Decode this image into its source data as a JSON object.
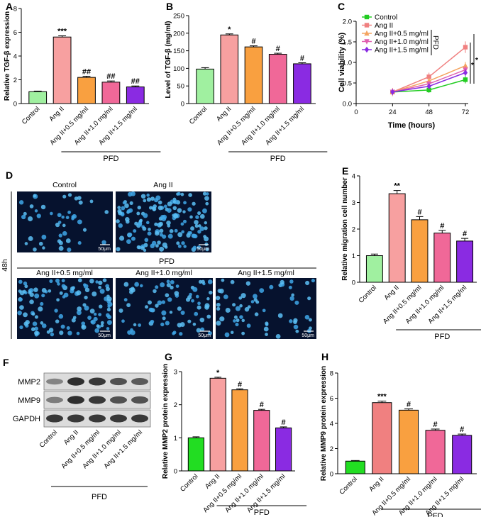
{
  "chart_data": [
    {
      "id": "A",
      "panel_label": "A",
      "type": "bar",
      "categories": [
        "Control",
        "Ang II",
        "Ang II+0.5 mg/ml",
        "Ang II+1.0 mg/ml",
        "Ang II+1.5 mg/ml"
      ],
      "values": [
        1.0,
        5.6,
        2.2,
        1.8,
        1.4
      ],
      "errors": [
        0.05,
        0.1,
        0.1,
        0.1,
        0.08
      ],
      "significance": [
        "",
        "***",
        "##",
        "##",
        "##"
      ],
      "colors": [
        "#a0f0a0",
        "#f7a0a0",
        "#f9a040",
        "#f06898",
        "#8a2be2"
      ],
      "ylabel": "Relative TGF-β expression",
      "ylim": [
        0,
        8
      ],
      "yticks": [
        0,
        2,
        4,
        6,
        8
      ],
      "group_label": "PFD"
    },
    {
      "id": "B",
      "panel_label": "B",
      "type": "bar",
      "categories": [
        "Control",
        "Ang II",
        "Ang II+0.5 mg/ml",
        "Ang II+1.0 mg/ml",
        "Ang II+1.5 mg/ml"
      ],
      "values": [
        98,
        195,
        161,
        140,
        113
      ],
      "errors": [
        4,
        3,
        3,
        3,
        3
      ],
      "significance": [
        "",
        "*",
        "#",
        "#",
        "#"
      ],
      "colors": [
        "#a0f0a0",
        "#f7a0a0",
        "#f9a040",
        "#f06898",
        "#8a2be2"
      ],
      "ylabel": "Level of TGF-β (mg/ml)",
      "ylim": [
        0,
        250
      ],
      "yticks": [
        0,
        50,
        100,
        150,
        200,
        250
      ],
      "group_label": "PFD"
    },
    {
      "id": "C",
      "panel_label": "C",
      "type": "line",
      "x": [
        24,
        48,
        72
      ],
      "xlim": [
        0,
        72
      ],
      "xticks": [
        0,
        24,
        48,
        72
      ],
      "ylim": [
        0.0,
        2.0
      ],
      "yticks": [
        "0.0",
        "0.5",
        "1.0",
        "1.5",
        "2.0"
      ],
      "xlabel": "Time (hours)",
      "ylabel": "Cell viability (%)",
      "series": [
        {
          "name": "Control",
          "values": [
            0.28,
            0.33,
            0.58
          ],
          "color": "#22cc22",
          "marker": "square"
        },
        {
          "name": "Ang II",
          "values": [
            0.28,
            0.65,
            1.37
          ],
          "color": "#f08080",
          "marker": "square"
        },
        {
          "name": "Ang II+0.5 mg/ml",
          "values": [
            0.28,
            0.55,
            0.92
          ],
          "color": "#f4a460",
          "marker": "triangle"
        },
        {
          "name": "Ang II+1.0 mg/ml",
          "values": [
            0.28,
            0.48,
            0.82
          ],
          "color": "#e060b0",
          "marker": "triangle-down"
        },
        {
          "name": "Ang II+1.5 mg/ml",
          "values": [
            0.28,
            0.42,
            0.75
          ],
          "color": "#8a2be2",
          "marker": "diamond"
        }
      ],
      "legend_group_label": "PFD",
      "significance": [
        "*",
        "*"
      ],
      "legend_position": "top-left"
    },
    {
      "id": "E",
      "panel_label": "E",
      "type": "bar",
      "categories": [
        "Control",
        "Ang II",
        "Ang II+0.5 mg/ml",
        "Ang II+1.0 mg/ml",
        "Ang II+1.5 mg/ml"
      ],
      "values": [
        1.0,
        3.33,
        2.35,
        1.85,
        1.55
      ],
      "errors": [
        0.06,
        0.12,
        0.12,
        0.1,
        0.1
      ],
      "significance": [
        "",
        "**",
        "#",
        "#",
        "#"
      ],
      "colors": [
        "#a0f0a0",
        "#f7a0a0",
        "#f9a040",
        "#f06898",
        "#8a2be2"
      ],
      "ylabel": "Relative migration cell number",
      "ylim": [
        0,
        4
      ],
      "yticks": [
        0,
        1,
        2,
        3,
        4
      ],
      "group_label": "PFD"
    },
    {
      "id": "G",
      "panel_label": "G",
      "type": "bar",
      "categories": [
        "Control",
        "Ang II",
        "Ang II+0.5 mg/ml",
        "Ang II+1.0 mg/ml",
        "Ang II+1.5 mg/ml"
      ],
      "values": [
        1.0,
        2.8,
        2.45,
        1.83,
        1.3
      ],
      "errors": [
        0.03,
        0.03,
        0.03,
        0.03,
        0.03
      ],
      "significance": [
        "",
        "*",
        "#",
        "#",
        "#"
      ],
      "colors": [
        "#22dd22",
        "#f7a0a0",
        "#f9a040",
        "#f06898",
        "#8a2be2"
      ],
      "ylabel": "Relative MMP2 protein expression",
      "ylim": [
        0,
        3
      ],
      "yticks": [
        0,
        1,
        2,
        3
      ],
      "group_label": "PFD"
    },
    {
      "id": "H",
      "panel_label": "H",
      "type": "bar",
      "categories": [
        "Control",
        "Ang II",
        "Ang II+0.5 mg/ml",
        "Ang II+1.0 mg/ml",
        "Ang II+1.5 mg/ml"
      ],
      "values": [
        1.0,
        5.65,
        5.05,
        3.45,
        3.05
      ],
      "errors": [
        0.05,
        0.12,
        0.1,
        0.1,
        0.1
      ],
      "significance": [
        "",
        "***",
        "#",
        "#",
        "#"
      ],
      "colors": [
        "#22dd22",
        "#f08080",
        "#f9a040",
        "#f06898",
        "#8a2be2"
      ],
      "ylabel": "Relative MMP9 protein expression",
      "ylim": [
        0,
        8
      ],
      "yticks": [
        0,
        2,
        4,
        6,
        8
      ],
      "group_label": "PFD"
    }
  ],
  "micrographs": {
    "panel_label": "D",
    "time_label": "48h",
    "group_label": "PFD",
    "scale_bar": "50μm",
    "images": [
      {
        "title": "Control",
        "cell_density": 0.3
      },
      {
        "title": "Ang II",
        "cell_density": 1.0
      },
      {
        "title": "Ang II+0.5 mg/ml",
        "cell_density": 0.75
      },
      {
        "title": "Ang II+1.0 mg/ml",
        "cell_density": 0.5
      },
      {
        "title": "Ang II+1.5 mg/ml",
        "cell_density": 0.42
      }
    ]
  },
  "western_blot": {
    "panel_label": "F",
    "rows": [
      "MMP2",
      "MMP9",
      "GAPDH"
    ],
    "lanes": [
      "Control",
      "Ang II",
      "Ang II+0.5 mg/ml",
      "Ang II+1.0 mg/ml",
      "Ang II+1.5 mg/ml"
    ],
    "band_intensity": {
      "MMP2": [
        0.4,
        0.9,
        0.85,
        0.7,
        0.65
      ],
      "MMP9": [
        0.45,
        0.9,
        0.85,
        0.7,
        0.7
      ],
      "GAPDH": [
        0.85,
        0.85,
        0.85,
        0.85,
        0.85
      ]
    },
    "group_label": "PFD"
  }
}
